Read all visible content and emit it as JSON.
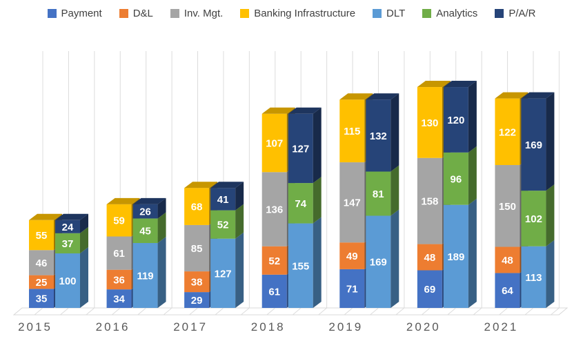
{
  "chart_data": {
    "type": "bar",
    "variant": "3d-stacked-column-pairs",
    "title": "",
    "categories": [
      "2015",
      "2016",
      "2017",
      "2018",
      "2019",
      "2020",
      "2021"
    ],
    "stacks": [
      "left",
      "right"
    ],
    "series": [
      {
        "name": "Payment",
        "stack": "left",
        "color": "#4472C4",
        "values": [
          35,
          34,
          29,
          61,
          71,
          69,
          64
        ]
      },
      {
        "name": "D&L",
        "stack": "left",
        "color": "#ED7D31",
        "values": [
          25,
          36,
          38,
          52,
          49,
          48,
          48
        ]
      },
      {
        "name": "Inv. Mgt.",
        "stack": "left",
        "color": "#A5A5A5",
        "values": [
          46,
          61,
          85,
          136,
          147,
          158,
          150
        ]
      },
      {
        "name": "Banking Infrastructure",
        "stack": "left",
        "color": "#FFC000",
        "values": [
          55,
          59,
          68,
          107,
          115,
          130,
          122
        ]
      },
      {
        "name": "DLT",
        "stack": "right",
        "color": "#5B9BD5",
        "values": [
          100,
          119,
          127,
          155,
          169,
          189,
          113
        ]
      },
      {
        "name": "Analytics",
        "stack": "right",
        "color": "#70AD47",
        "values": [
          37,
          45,
          52,
          74,
          81,
          96,
          102
        ]
      },
      {
        "name": "P/A/R",
        "stack": "right",
        "color": "#264478",
        "values": [
          24,
          26,
          41,
          127,
          132,
          120,
          169
        ]
      }
    ],
    "legend_position": "top",
    "data_labels": "inside-center, white bold",
    "grid": {
      "vertical_lines": true,
      "horizontal_lines": false,
      "color": "#DCDCDC"
    },
    "axes": {
      "y_axis_visible": false,
      "x_tick_labels": [
        "2015",
        "2016",
        "2017",
        "2018",
        "2019",
        "2020",
        "2021"
      ]
    },
    "style": {
      "background": "#FFFFFF",
      "value_label_color": "#FFFFFF",
      "category_label_color": "#595959",
      "legend_text_color": "#3F3F3F",
      "floor_fill": "#FFFFFF",
      "floor_stroke": "#D8D8D8"
    }
  }
}
